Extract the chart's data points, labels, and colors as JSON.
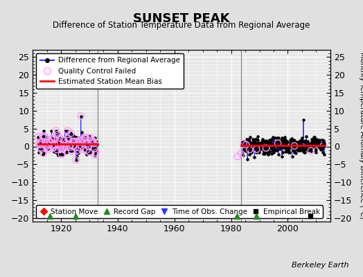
{
  "title": "SUNSET PEAK",
  "subtitle": "Difference of Station Temperature Data from Regional Average",
  "ylabel": "Monthly Temperature Anomaly Difference (°C)",
  "xlim": [
    1910,
    2015
  ],
  "ylim": [
    -21,
    27
  ],
  "yticks": [
    -20,
    -15,
    -10,
    -5,
    0,
    5,
    10,
    15,
    20,
    25
  ],
  "xticks": [
    1920,
    1940,
    1960,
    1980,
    2000
  ],
  "bg_color": "#e0e0e0",
  "plot_bg_color": "#e8e8e8",
  "grid_color": "#ffffff",
  "period1_start": 1912.0,
  "period1_end": 1932.5,
  "period2_start": 1984.0,
  "period2_end": 2013.0,
  "bias1": 0.7,
  "bias2": 0.2,
  "vertical_lines": [
    1933.0,
    1983.5
  ],
  "record_gaps": [
    1916.0,
    1925.0,
    1982.0,
    1989.0
  ],
  "empirical_breaks": [
    2008.0
  ],
  "berkeley_earth_text": "Berkeley Earth",
  "spike1_year": 1927.0,
  "spike1_val": 8.5,
  "spike2_year": 2005.5,
  "spike2_val": 7.5,
  "iso_points": [
    [
      1982.3,
      -2.8
    ],
    [
      1983.5,
      -2.0
    ]
  ],
  "seed1": 10,
  "seed2": 20
}
